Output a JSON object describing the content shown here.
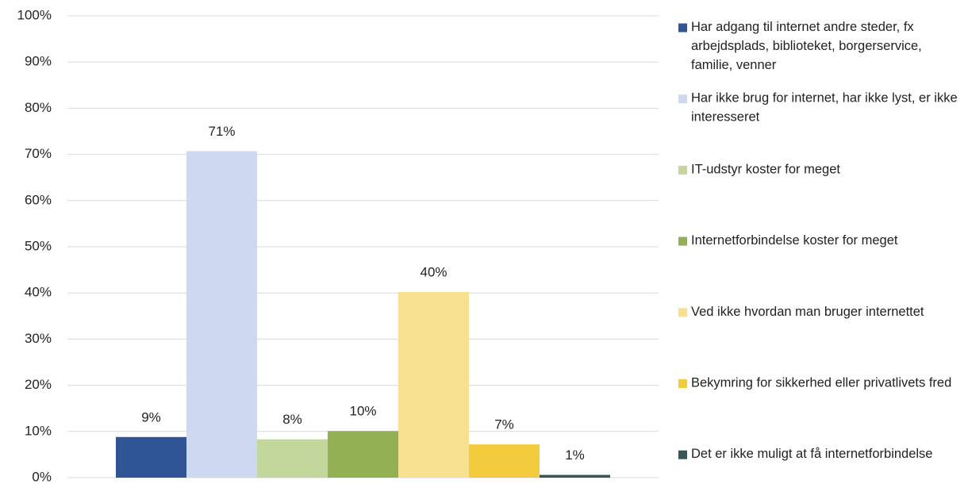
{
  "chart_data": {
    "type": "bar",
    "series": [
      {
        "name": "Har adgang til internet andre steder, fx arbejdsplads, biblioteket, borgerservice, familie, venner",
        "color": "#2f5597",
        "values": [
          8.8
        ],
        "value_labels": [
          "9%"
        ]
      },
      {
        "name": "Har ikke brug for internet, har ikke lyst, er ikke interesseret",
        "color": "#cdd9f0",
        "values": [
          70.7
        ],
        "value_labels": [
          "71%"
        ]
      },
      {
        "name": "IT-udstyr koster for meget",
        "color": "#c3d69b",
        "values": [
          8.3
        ],
        "value_labels": [
          "8%"
        ]
      },
      {
        "name": "Internetforbindelse koster for meget",
        "color": "#93b154",
        "values": [
          10.1
        ],
        "value_labels": [
          "10%"
        ]
      },
      {
        "name": "Ved ikke hvordan man bruger internettet",
        "color": "#f7e08f",
        "values": [
          40.2
        ],
        "value_labels": [
          "40%"
        ]
      },
      {
        "name": "Bekymring for sikkerhed eller privatlivets fred",
        "color": "#f2cc3c",
        "values": [
          7.2
        ],
        "value_labels": [
          "7%"
        ]
      },
      {
        "name": "Det er ikke muligt at få internetforbindelse",
        "color": "#36575a",
        "values": [
          0.6
        ],
        "value_labels": [
          "1%"
        ]
      }
    ],
    "ylim": [
      0,
      100
    ],
    "yticks": [
      {
        "value": 0,
        "label": "0%"
      },
      {
        "value": 10,
        "label": "10%"
      },
      {
        "value": 20,
        "label": "20%"
      },
      {
        "value": 30,
        "label": "30%"
      },
      {
        "value": 40,
        "label": "40%"
      },
      {
        "value": 50,
        "label": "50%"
      },
      {
        "value": 60,
        "label": "60%"
      },
      {
        "value": 70,
        "label": "70%"
      },
      {
        "value": 80,
        "label": "80%"
      },
      {
        "value": 90,
        "label": "90%"
      },
      {
        "value": 100,
        "label": "100%"
      }
    ],
    "grid": true,
    "legend": "right"
  }
}
